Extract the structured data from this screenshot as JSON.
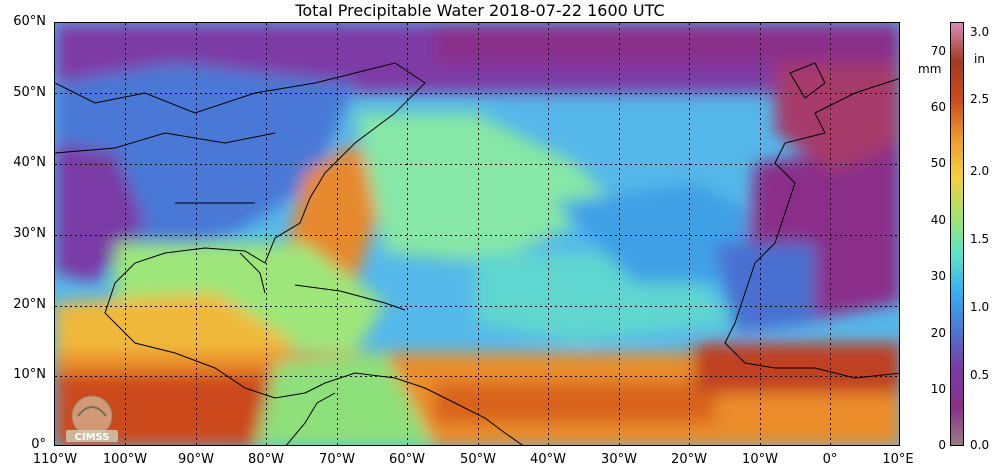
{
  "title": "Total Precipitable Water  2018-07-22 1600 UTC",
  "lat_labels": [
    "60°N",
    "50°N",
    "40°N",
    "30°N",
    "20°N",
    "10°N",
    "0°"
  ],
  "lon_labels": [
    "110°W",
    "100°W",
    "90°W",
    "80°W",
    "70°W",
    "60°W",
    "50°W",
    "40°W",
    "30°W",
    "20°W",
    "10°W",
    "0°",
    "10°E"
  ],
  "colorbar": {
    "mm_unit": "mm",
    "in_unit": "in",
    "mm_ticks": [
      "70",
      "60",
      "50",
      "40",
      "30",
      "20",
      "10",
      "0"
    ],
    "in_ticks": [
      "3.0",
      "2.5",
      "2.0",
      "1.5",
      "1.0",
      "0.5",
      "0.0"
    ],
    "colors": [
      "#d98bb8",
      "#a43a1e",
      "#cc4a1d",
      "#ee9a2c",
      "#f5d03c",
      "#a6e26a",
      "#5ce6c8",
      "#36b0f0",
      "#4a78d6",
      "#7a3aa6",
      "#8a2f8a",
      "#9a7a86"
    ]
  },
  "logo": {
    "text": "CIMSS"
  },
  "colors": {
    "high_moisture": "#e57a2a",
    "very_high": "#b7391f",
    "medium": "#7fe2a8",
    "low": "#4fa7e8",
    "dry": "#8a3aa8",
    "land_line": "#000000"
  }
}
